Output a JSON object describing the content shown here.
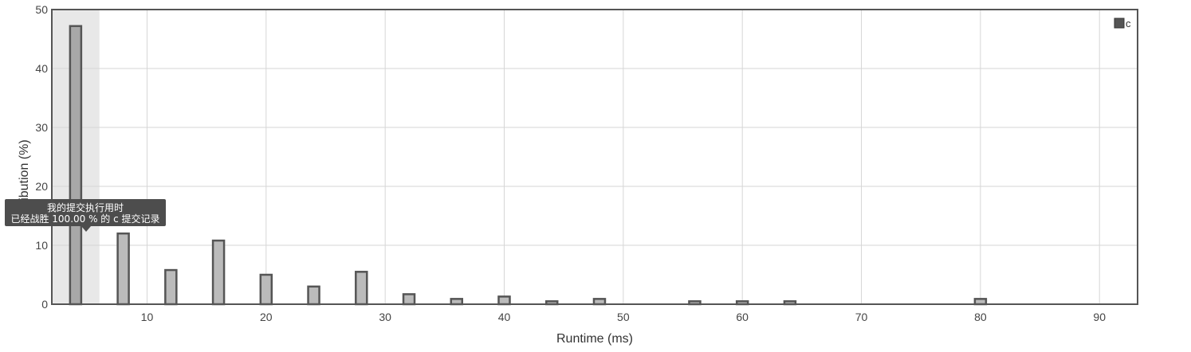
{
  "chart_data": {
    "type": "bar",
    "xlabel": "Runtime (ms)",
    "ylabel": "Distribution (%)",
    "xlim": [
      2,
      93.2
    ],
    "ylim": [
      0,
      50
    ],
    "xticks": [
      10,
      20,
      30,
      40,
      50,
      60,
      70,
      80,
      90
    ],
    "yticks": [
      0,
      10,
      20,
      30,
      40,
      50
    ],
    "grid": true,
    "legend_position": "top-right",
    "series": [
      {
        "name": "c",
        "color": "#bbbbbb",
        "x": [
          4,
          8,
          12,
          16,
          20,
          24,
          28,
          32,
          36,
          40,
          44,
          48,
          56,
          60,
          64,
          80
        ],
        "values": [
          47.2,
          12.0,
          5.8,
          10.8,
          5.0,
          3.0,
          5.5,
          1.7,
          0.9,
          1.3,
          0.5,
          0.9,
          0.5,
          0.5,
          0.5,
          0.9
        ]
      }
    ],
    "highlight": {
      "x_range": [
        2,
        6
      ],
      "bar_x": 4,
      "bar_color": "#a8a8a8"
    }
  },
  "tooltip": {
    "line1": "我的提交执行用时",
    "line2": "已经战胜 100.00 % 的 c 提交记录"
  }
}
